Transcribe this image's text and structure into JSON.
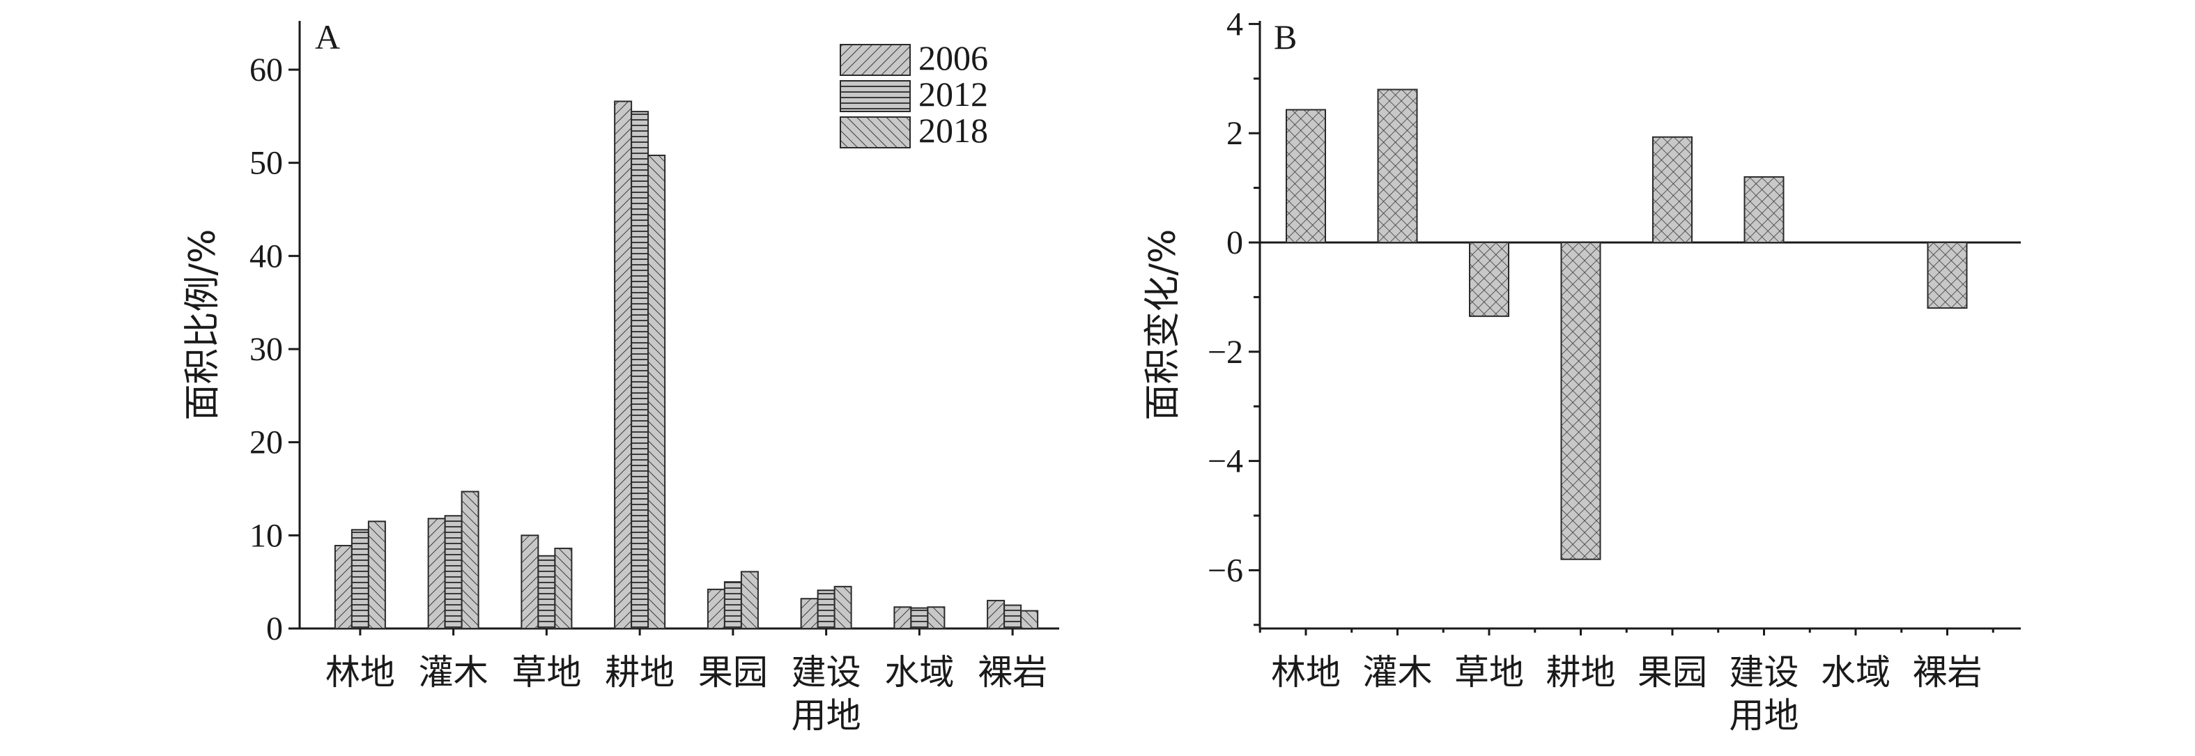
{
  "chart_data": [
    {
      "panel": "A",
      "type": "bar",
      "ylabel": "面积比例/%",
      "ylim": [
        0,
        65
      ],
      "yticks": [
        0,
        10,
        20,
        30,
        40,
        50,
        60
      ],
      "categories": [
        "林地",
        "灌木",
        "草地",
        "耕地",
        "果园",
        "建设用地",
        "水域",
        "裸岩"
      ],
      "category_label_lines": [
        [
          "林地"
        ],
        [
          "灌木"
        ],
        [
          "草地"
        ],
        [
          "耕地"
        ],
        [
          "果园"
        ],
        [
          "建设",
          "用地"
        ],
        [
          "水域"
        ],
        [
          "裸岩"
        ]
      ],
      "legend_position": "top-right",
      "series": [
        {
          "name": "2006",
          "values": [
            8.9,
            11.8,
            10.0,
            56.6,
            4.2,
            3.2,
            2.3,
            3.0
          ],
          "pattern": "diag-right"
        },
        {
          "name": "2012",
          "values": [
            10.6,
            12.1,
            7.8,
            55.5,
            5.0,
            4.1,
            2.2,
            2.5
          ],
          "pattern": "horizontal"
        },
        {
          "name": "2018",
          "values": [
            11.5,
            14.7,
            8.6,
            50.8,
            6.1,
            4.5,
            2.3,
            1.9
          ],
          "pattern": "diag-left"
        }
      ],
      "bar_fill": "#c8c8c8"
    },
    {
      "panel": "B",
      "type": "bar",
      "ylabel": "面积变化/%",
      "ylim": [
        -7,
        4
      ],
      "yticks": [
        4,
        2,
        0,
        -2,
        -4,
        -6
      ],
      "ytick_labels": [
        "4",
        "2",
        "0",
        "−2",
        "−4",
        "−6"
      ],
      "categories": [
        "林地",
        "灌木",
        "草地",
        "耕地",
        "果园",
        "建设用地",
        "水域",
        "裸岩"
      ],
      "category_label_lines": [
        [
          "林地"
        ],
        [
          "灌木"
        ],
        [
          "草地"
        ],
        [
          "耕地"
        ],
        [
          "果园"
        ],
        [
          "建设",
          "用地"
        ],
        [
          "水域"
        ],
        [
          "裸岩"
        ]
      ],
      "values": [
        2.43,
        2.8,
        -1.35,
        -5.8,
        1.93,
        1.2,
        0.0,
        -1.2
      ],
      "pattern": "crosshatch",
      "bar_fill": "#c8c8c8"
    }
  ]
}
